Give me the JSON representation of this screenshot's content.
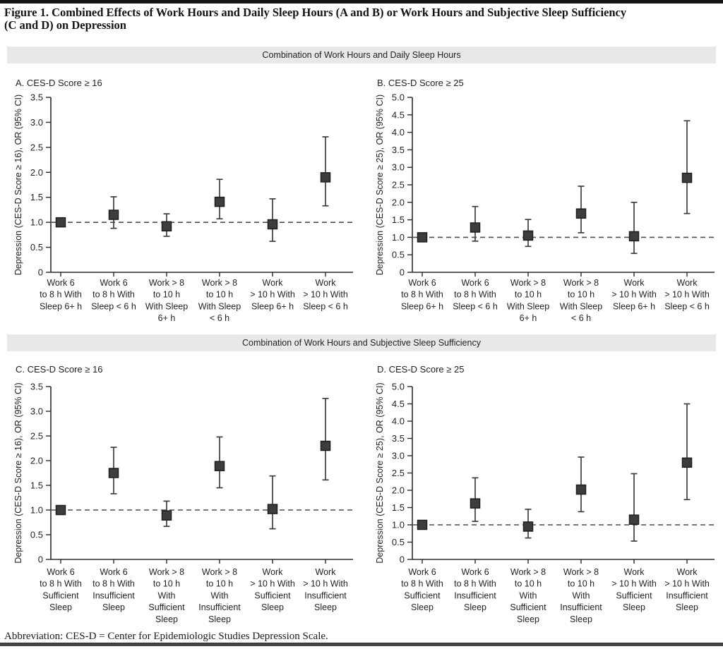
{
  "figure": {
    "title_lines": [
      "Figure 1. Combined Effects of Work Hours and Daily Sleep Hours (A and B) or Work Hours and Subjective Sleep Sufficiency",
      "(C and D) on Depression"
    ],
    "abbreviation": "Abbreviation: CES-D = Center for Epidemiologic Studies Depression Scale."
  },
  "sections": [
    {
      "header": "Combination of Work Hours and Daily Sleep Hours"
    },
    {
      "header": "Combination of Work Hours and Subjective Sleep Sufficiency"
    }
  ],
  "colors": {
    "text": "#231f20",
    "axis": "#2b2b2b",
    "marker": "#3d3d3d",
    "marker_border": "#1e1e1e",
    "error_bar": "#3f3f3f",
    "reference_line": "#4f4f4f",
    "section_bar": "#e8e8e8"
  },
  "chart_data": [
    {
      "type": "scatter",
      "panel": "A",
      "title": "A. CES-D Score ≥ 16",
      "ylabel": "Depression (CES-D Score ≥ 16), OR (95% CI)",
      "ylim": [
        0,
        3.5
      ],
      "ytick_step": 0.5,
      "reference_line": 1.0,
      "grid": false,
      "categories": [
        [
          "Work 6",
          "to 8 h With",
          "Sleep 6+ h"
        ],
        [
          "Work 6",
          "to 8 h With",
          "Sleep < 6 h"
        ],
        [
          "Work > 8",
          "to 10 h",
          "With Sleep",
          "6+ h"
        ],
        [
          "Work > 8",
          "to 10 h",
          "With Sleep",
          "< 6 h"
        ],
        [
          "Work",
          "> 10 h With",
          "Sleep 6+ h"
        ],
        [
          "Work",
          "> 10 h With",
          "Sleep < 6 h"
        ]
      ],
      "points": [
        {
          "or": 1.0,
          "lo": null,
          "hi": null
        },
        {
          "or": 1.15,
          "lo": 0.88,
          "hi": 1.51
        },
        {
          "or": 0.92,
          "lo": 0.72,
          "hi": 1.17
        },
        {
          "or": 1.41,
          "lo": 1.07,
          "hi": 1.86
        },
        {
          "or": 0.96,
          "lo": 0.62,
          "hi": 1.47
        },
        {
          "or": 1.9,
          "lo": 1.33,
          "hi": 2.71
        }
      ]
    },
    {
      "type": "scatter",
      "panel": "B",
      "title": "B. CES-D Score ≥ 25",
      "ylabel": "Depression (CES-D Score ≥ 25), OR (95% CI)",
      "ylim": [
        0,
        5.0
      ],
      "ytick_step": 0.5,
      "reference_line": 1.0,
      "grid": false,
      "categories": [
        [
          "Work 6",
          "to 8 h With",
          "Sleep 6+ h"
        ],
        [
          "Work 6",
          "to 8 h With",
          "Sleep < 6 h"
        ],
        [
          "Work > 8",
          "to 10 h",
          "With Sleep",
          "6+ h"
        ],
        [
          "Work > 8",
          "to 10 h",
          "With Sleep",
          "< 6 h"
        ],
        [
          "Work",
          "> 10 h With",
          "Sleep 6+ h"
        ],
        [
          "Work",
          "> 10 h With",
          "Sleep < 6 h"
        ]
      ],
      "points": [
        {
          "or": 1.0,
          "lo": null,
          "hi": null
        },
        {
          "or": 1.28,
          "lo": 0.89,
          "hi": 1.88
        },
        {
          "or": 1.05,
          "lo": 0.74,
          "hi": 1.51
        },
        {
          "or": 1.68,
          "lo": 1.13,
          "hi": 2.46
        },
        {
          "or": 1.03,
          "lo": 0.54,
          "hi": 2.0
        },
        {
          "or": 2.7,
          "lo": 1.68,
          "hi": 4.33
        }
      ]
    },
    {
      "type": "scatter",
      "panel": "C",
      "title": "C. CES-D Score ≥ 16",
      "ylabel": "Depression (CES-D Score ≥ 16), OR (95% CI)",
      "ylim": [
        0,
        3.5
      ],
      "ytick_step": 0.5,
      "reference_line": 1.0,
      "grid": false,
      "categories": [
        [
          "Work 6",
          "to 8 h With",
          "Sufficient",
          "Sleep"
        ],
        [
          "Work 6",
          "to 8 h With",
          "Insufficient",
          "Sleep"
        ],
        [
          "Work > 8",
          "to 10 h",
          "With",
          "Sufficient",
          "Sleep"
        ],
        [
          "Work > 8",
          "to 10 h",
          "With",
          "Insufficient",
          "Sleep"
        ],
        [
          "Work",
          "> 10 h With",
          "Sufficient",
          "Sleep"
        ],
        [
          "Work",
          "> 10 h With",
          "Insufficient",
          "Sleep"
        ]
      ],
      "points": [
        {
          "or": 1.0,
          "lo": null,
          "hi": null
        },
        {
          "or": 1.75,
          "lo": 1.33,
          "hi": 2.27
        },
        {
          "or": 0.89,
          "lo": 0.67,
          "hi": 1.18
        },
        {
          "or": 1.89,
          "lo": 1.45,
          "hi": 2.48
        },
        {
          "or": 1.02,
          "lo": 0.62,
          "hi": 1.69
        },
        {
          "or": 2.3,
          "lo": 1.61,
          "hi": 3.26
        }
      ]
    },
    {
      "type": "scatter",
      "panel": "D",
      "title": "D. CES-D Score ≥ 25",
      "ylabel": "Depression (CES-D Score ≥ 25), OR (95% CI)",
      "ylim": [
        0,
        5.0
      ],
      "ytick_step": 0.5,
      "reference_line": 1.0,
      "grid": false,
      "categories": [
        [
          "Work 6",
          "to 8 h With",
          "Sufficient",
          "Sleep"
        ],
        [
          "Work 6",
          "to 8 h With",
          "Insufficient",
          "Sleep"
        ],
        [
          "Work > 8",
          "to 10 h",
          "With",
          "Sufficient",
          "Sleep"
        ],
        [
          "Work > 8",
          "to 10 h",
          "With",
          "Insufficient",
          "Sleep"
        ],
        [
          "Work",
          "> 10 h With",
          "Sufficient",
          "Sleep"
        ],
        [
          "Work",
          "> 10 h With",
          "Insufficient",
          "Sleep"
        ]
      ],
      "points": [
        {
          "or": 1.0,
          "lo": null,
          "hi": null
        },
        {
          "or": 1.62,
          "lo": 1.1,
          "hi": 2.36
        },
        {
          "or": 0.95,
          "lo": 0.62,
          "hi": 1.45
        },
        {
          "or": 2.02,
          "lo": 1.38,
          "hi": 2.96
        },
        {
          "or": 1.15,
          "lo": 0.53,
          "hi": 2.48
        },
        {
          "or": 2.8,
          "lo": 1.73,
          "hi": 4.5
        }
      ]
    }
  ]
}
